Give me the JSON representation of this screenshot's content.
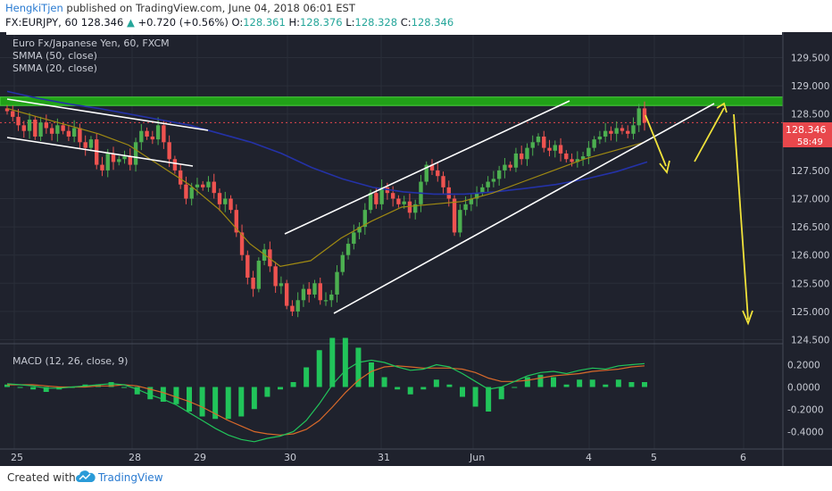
{
  "header": {
    "author": "HengkiTjen",
    "published_text": "published on TradingView.com, June 04, 2018 06:01 EST",
    "symbol": "FX:EURJPY, 60",
    "last": "128.346",
    "change_arrow": "▲",
    "change": "+0.720 (+0.56%)",
    "o_label": "O:",
    "o": "128.361",
    "h_label": "H:",
    "h": "128.376",
    "l_label": "L:",
    "l": "128.328",
    "c_label": "C:",
    "c": "128.346"
  },
  "legend": {
    "title": "Euro Fx/Japanese Yen, 60, FXCM",
    "smma50": "SMMA (50, close)",
    "smma20": "SMMA (20, close)",
    "macd": "MACD (12, 26, close, 9)"
  },
  "price_badge": {
    "value": "128.346",
    "countdown": "58:49"
  },
  "footer": {
    "created_with": "Created with",
    "brand": "TradingView"
  },
  "colors": {
    "background": "#1f222d",
    "up_candle": "#4caf50",
    "down_candle": "#ef5350",
    "smma50": "#2432a8",
    "smma20": "#a08a12",
    "macd_line": "#21c45a",
    "signal_line": "#d9692a",
    "hist": "#21c45a",
    "zone": "#22a817",
    "channel": "#ffffff",
    "arrows": "#f0e23a",
    "badge": "#e8474c"
  },
  "chart_data": [
    {
      "type": "candlestick",
      "symbol": "EURJPY",
      "interval": "60",
      "x_ticks": [
        "25",
        "28",
        "29",
        "30",
        "31",
        "Jun",
        "4",
        "5",
        "6"
      ],
      "y_ticks": [
        "129.500",
        "129.000",
        "128.500",
        "128.000",
        "127.500",
        "127.000",
        "126.500",
        "126.000",
        "125.500",
        "125.000",
        "124.500"
      ],
      "ylim": [
        124.3,
        129.9
      ],
      "series_close": [
        128.55,
        128.45,
        128.3,
        128.2,
        128.4,
        128.1,
        128.35,
        128.25,
        128.15,
        128.3,
        128.2,
        128.1,
        128.25,
        128.0,
        127.9,
        128.05,
        127.6,
        127.5,
        127.8,
        127.65,
        127.7,
        127.75,
        127.6,
        128.0,
        128.2,
        128.1,
        128.05,
        128.3,
        128.0,
        127.7,
        127.5,
        127.25,
        127.0,
        127.2,
        127.25,
        127.2,
        127.3,
        127.1,
        126.9,
        127.0,
        126.8,
        126.4,
        126.0,
        125.6,
        125.4,
        125.9,
        126.1,
        125.8,
        125.45,
        125.5,
        125.1,
        125.0,
        125.2,
        125.4,
        125.3,
        125.5,
        125.2,
        125.2,
        125.3,
        125.7,
        126.0,
        126.2,
        126.4,
        126.5,
        126.8,
        127.1,
        126.9,
        127.2,
        127.1,
        127.0,
        126.9,
        126.95,
        126.75,
        126.9,
        127.3,
        127.6,
        127.5,
        127.4,
        127.2,
        127.0,
        126.4,
        126.8,
        126.9,
        127.0,
        127.1,
        127.2,
        127.3,
        127.35,
        127.5,
        127.6,
        127.55,
        127.8,
        127.7,
        127.9,
        128.0,
        128.1,
        127.9,
        127.85,
        127.95,
        127.8,
        127.7,
        127.65,
        127.7,
        127.75,
        127.9,
        128.05,
        128.1,
        128.2,
        128.15,
        128.25,
        128.2,
        128.15,
        128.3,
        128.6,
        128.346
      ],
      "smma50": [
        128.9,
        128.78,
        128.68,
        128.6,
        128.5,
        128.4,
        128.3,
        128.15,
        128.0,
        127.8,
        127.55,
        127.35,
        127.2,
        127.12,
        127.08,
        127.08,
        127.12,
        127.18,
        127.25,
        127.35,
        127.48,
        127.65
      ],
      "smma20": [
        128.6,
        128.45,
        128.3,
        128.15,
        127.95,
        127.6,
        127.25,
        126.8,
        126.2,
        125.8,
        125.9,
        126.3,
        126.6,
        126.85,
        126.9,
        126.95,
        127.1,
        127.3,
        127.5,
        127.7,
        127.85,
        128.0
      ],
      "resistance_zone": [
        128.65,
        128.8
      ],
      "annotations": [
        "resistance zone",
        "descending channel",
        "ascending channel",
        "projected arrows"
      ]
    },
    {
      "type": "macd",
      "params": "12, 26, close, 9",
      "y_ticks": [
        "0.2000",
        "0.0000",
        "-0.2000",
        "-0.4000"
      ],
      "ylim": [
        -0.52,
        0.32
      ],
      "macd": [
        0.03,
        0.02,
        0.01,
        -0.01,
        -0.01,
        0.0,
        0.01,
        0.02,
        0.03,
        0.02,
        -0.02,
        -0.07,
        -0.11,
        -0.16,
        -0.23,
        -0.3,
        -0.37,
        -0.43,
        -0.47,
        -0.49,
        -0.46,
        -0.44,
        -0.4,
        -0.3,
        -0.15,
        0.02,
        0.15,
        0.22,
        0.24,
        0.22,
        0.18,
        0.15,
        0.16,
        0.2,
        0.18,
        0.12,
        0.05,
        -0.02,
        0.0,
        0.05,
        0.1,
        0.13,
        0.14,
        0.12,
        0.15,
        0.17,
        0.16,
        0.19,
        0.2,
        0.21
      ],
      "signal": [
        0.02,
        0.02,
        0.02,
        0.01,
        0.0,
        0.0,
        0.0,
        0.01,
        0.01,
        0.02,
        0.01,
        -0.02,
        -0.05,
        -0.09,
        -0.13,
        -0.18,
        -0.24,
        -0.3,
        -0.35,
        -0.4,
        -0.42,
        -0.43,
        -0.42,
        -0.38,
        -0.3,
        -0.18,
        -0.05,
        0.06,
        0.14,
        0.18,
        0.19,
        0.18,
        0.17,
        0.17,
        0.17,
        0.16,
        0.13,
        0.08,
        0.05,
        0.05,
        0.06,
        0.08,
        0.1,
        0.11,
        0.12,
        0.14,
        0.15,
        0.16,
        0.18,
        0.19
      ]
    }
  ]
}
